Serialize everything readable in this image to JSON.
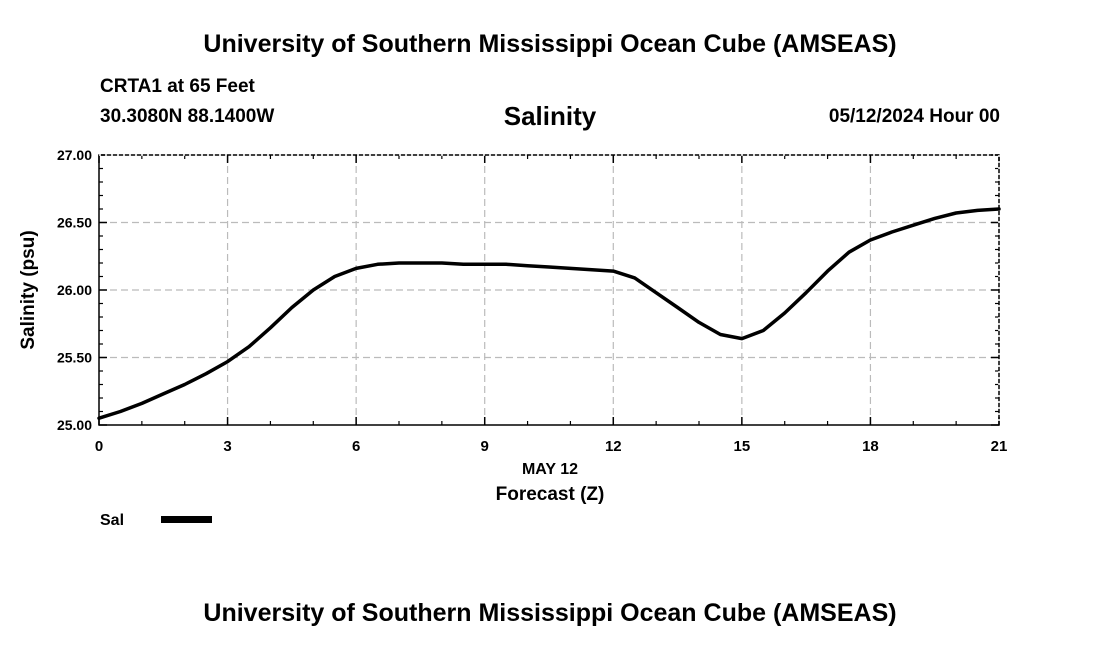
{
  "header": {
    "title_top": "University of Southern Mississippi Ocean Cube (AMSEAS)",
    "station": "CRTA1 at 65 Feet",
    "coords": "30.3080N  88.1400W",
    "variable": "Salinity",
    "datetime": "05/12/2024 Hour 00"
  },
  "footer": {
    "title_bottom": "University of Southern Mississippi Ocean Cube (AMSEAS)"
  },
  "colors": {
    "line": "#000000",
    "grid": "#bbbbbb",
    "background": "#ffffff"
  },
  "chart_data": {
    "type": "line",
    "title": "Salinity",
    "xlabel": "Forecast (Z)",
    "xlabel_date": "MAY 12",
    "ylabel": "Salinity (psu)",
    "xlim": [
      0,
      21
    ],
    "ylim": [
      25.0,
      27.0
    ],
    "xticks": [
      0,
      3,
      6,
      9,
      12,
      15,
      18,
      21
    ],
    "yticks": [
      25.0,
      25.5,
      26.0,
      26.5,
      27.0
    ],
    "ytick_labels": [
      "25.00",
      "25.50",
      "26.00",
      "26.50",
      "27.00"
    ],
    "grid": true,
    "legend": "bottom-left",
    "series": [
      {
        "name": "Sal",
        "x": [
          0,
          0.5,
          1,
          1.5,
          2,
          2.5,
          3,
          3.5,
          4,
          4.5,
          5,
          5.5,
          6,
          6.5,
          7,
          7.5,
          8,
          8.5,
          9,
          9.5,
          10,
          10.5,
          11,
          11.5,
          12,
          12.5,
          13,
          13.5,
          14,
          14.5,
          15,
          15.5,
          16,
          16.5,
          17,
          17.5,
          18,
          18.5,
          19,
          19.5,
          20,
          20.5,
          21
        ],
        "values": [
          25.05,
          25.1,
          25.16,
          25.23,
          25.3,
          25.38,
          25.47,
          25.58,
          25.72,
          25.87,
          26.0,
          26.1,
          26.16,
          26.19,
          26.2,
          26.2,
          26.2,
          26.19,
          26.19,
          26.19,
          26.18,
          26.17,
          26.16,
          26.15,
          26.14,
          26.09,
          25.98,
          25.87,
          25.76,
          25.67,
          25.64,
          25.7,
          25.83,
          25.98,
          26.14,
          26.28,
          26.37,
          26.43,
          26.48,
          26.53,
          26.57,
          26.59,
          26.6
        ]
      }
    ]
  }
}
